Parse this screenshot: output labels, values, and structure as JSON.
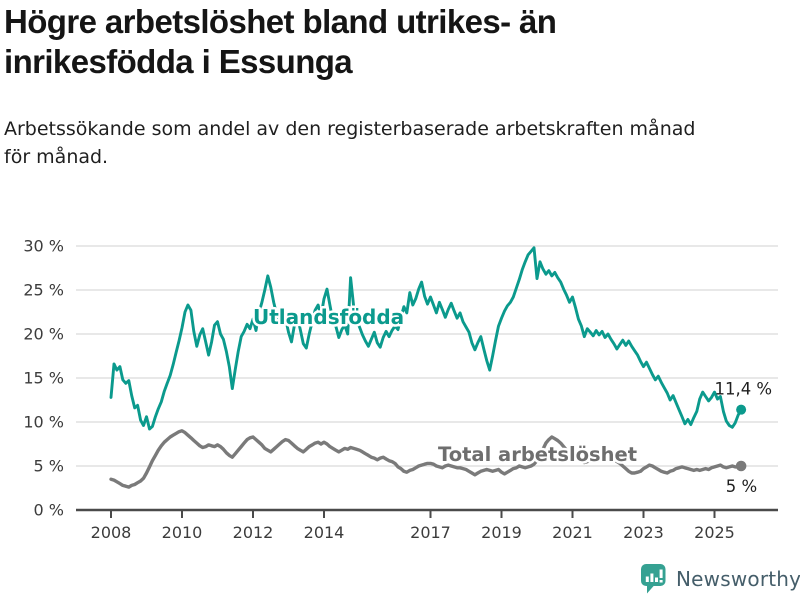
{
  "header": {
    "title": "Högre arbetslöshet bland utrikes- än\ninrikesfödda i Essunga",
    "subtitle": "Arbetssökande som andel av den registerbaserade arbetskraften månad\nför månad."
  },
  "chart_data": {
    "type": "line",
    "frequency": "monthly",
    "x_start": "2008-01",
    "x_end": "2025-10",
    "unit": "%",
    "ylim": [
      0,
      30
    ],
    "grid": "horizontal",
    "y_ticks": [
      0,
      5,
      10,
      15,
      20,
      25,
      30
    ],
    "y_tick_labels": [
      "0 %",
      "5 %",
      "10 %",
      "15 %",
      "20 %",
      "25 %",
      "30 %"
    ],
    "x_tick_years": [
      2008,
      2010,
      2012,
      2014,
      2017,
      2019,
      2021,
      2023,
      2025
    ],
    "x_tick_labels": [
      "2008",
      "2010",
      "2012",
      "2014",
      "2017",
      "2019",
      "2021",
      "2023",
      "2025"
    ],
    "colors": {
      "grid": "#d9d9d9",
      "axis": "#4a4a4a",
      "tick_text": "#3c3c3c",
      "annotation_text": "#1f1f1f"
    },
    "series": [
      {
        "name": "Utlandsfödda",
        "color": "#0b9a8d",
        "label_color": "#0b9a8d",
        "end_value": 11.4,
        "end_label": "11,4 %",
        "values": [
          12.8,
          16.6,
          15.9,
          16.3,
          14.8,
          14.4,
          14.7,
          13.0,
          11.6,
          11.9,
          10.2,
          9.6,
          10.6,
          9.2,
          9.5,
          10.6,
          11.5,
          12.3,
          13.5,
          14.4,
          15.3,
          16.5,
          17.9,
          19.2,
          20.7,
          22.5,
          23.3,
          22.7,
          20.3,
          18.6,
          19.9,
          20.6,
          19.1,
          17.6,
          19.1,
          21.0,
          21.4,
          20.0,
          19.4,
          18.0,
          16.3,
          13.8,
          16.0,
          18.0,
          19.7,
          20.3,
          21.1,
          20.6,
          21.7,
          20.4,
          22.4,
          23.6,
          25.0,
          26.6,
          25.3,
          23.6,
          22.2,
          21.2,
          22.5,
          21.8,
          20.2,
          19.1,
          21.0,
          21.9,
          20.5,
          18.9,
          18.4,
          20.0,
          21.4,
          22.7,
          23.3,
          22.0,
          24.0,
          25.1,
          23.3,
          21.5,
          20.9,
          19.6,
          20.5,
          21.0,
          20.0,
          26.4,
          23.2,
          21.5,
          20.8,
          19.9,
          19.2,
          18.6,
          19.4,
          20.2,
          19.0,
          18.5,
          19.6,
          20.3,
          19.7,
          20.4,
          20.9,
          20.5,
          21.9,
          23.1,
          22.4,
          24.7,
          23.3,
          24.0,
          25.1,
          25.9,
          24.3,
          23.4,
          24.2,
          23.3,
          22.4,
          23.6,
          22.8,
          21.9,
          22.8,
          23.5,
          22.6,
          21.8,
          22.4,
          21.4,
          20.8,
          20.2,
          19.0,
          18.2,
          19.0,
          19.7,
          18.3,
          17.0,
          15.9,
          17.5,
          19.3,
          20.9,
          21.8,
          22.6,
          23.2,
          23.6,
          24.2,
          25.2,
          26.2,
          27.3,
          28.2,
          29.0,
          29.4,
          29.8,
          26.3,
          28.2,
          27.4,
          26.8,
          27.2,
          26.6,
          27.0,
          26.4,
          25.9,
          25.1,
          24.4,
          23.6,
          24.2,
          23.0,
          21.7,
          20.9,
          19.7,
          20.6,
          20.2,
          19.8,
          20.4,
          19.9,
          20.3,
          19.6,
          20.0,
          19.4,
          18.9,
          18.3,
          18.8,
          19.3,
          18.7,
          19.2,
          18.6,
          18.1,
          17.6,
          16.9,
          16.3,
          16.8,
          16.1,
          15.4,
          14.8,
          15.2,
          14.5,
          13.9,
          13.3,
          12.5,
          13.0,
          12.2,
          11.4,
          10.6,
          9.8,
          10.3,
          9.7,
          10.5,
          11.2,
          12.6,
          13.4,
          12.9,
          12.4,
          12.8,
          13.4,
          12.6,
          12.9,
          11.2,
          10.1,
          9.6,
          9.4,
          9.9,
          10.8,
          11.4
        ]
      },
      {
        "name": "Total arbetslöshet",
        "color": "#7a7a7a",
        "label_color": "#6e6e6e",
        "end_value": 5,
        "end_label": "5 %",
        "values": [
          3.5,
          3.4,
          3.2,
          3.0,
          2.8,
          2.7,
          2.6,
          2.8,
          2.9,
          3.1,
          3.3,
          3.6,
          4.2,
          4.9,
          5.6,
          6.2,
          6.8,
          7.3,
          7.7,
          8.0,
          8.3,
          8.5,
          8.7,
          8.9,
          9.0,
          8.8,
          8.5,
          8.2,
          7.9,
          7.6,
          7.3,
          7.1,
          7.2,
          7.4,
          7.3,
          7.2,
          7.4,
          7.2,
          6.9,
          6.5,
          6.2,
          6.0,
          6.4,
          6.8,
          7.2,
          7.6,
          8.0,
          8.2,
          8.3,
          8.0,
          7.7,
          7.4,
          7.0,
          6.8,
          6.6,
          6.9,
          7.2,
          7.5,
          7.8,
          8.0,
          7.9,
          7.6,
          7.3,
          7.0,
          6.8,
          6.6,
          6.9,
          7.2,
          7.4,
          7.6,
          7.7,
          7.5,
          7.7,
          7.5,
          7.2,
          7.0,
          6.8,
          6.6,
          6.8,
          7.0,
          6.9,
          7.1,
          7.0,
          6.9,
          6.8,
          6.6,
          6.4,
          6.2,
          6.0,
          5.9,
          5.7,
          5.9,
          6.0,
          5.8,
          5.6,
          5.5,
          5.3,
          4.9,
          4.7,
          4.4,
          4.3,
          4.5,
          4.6,
          4.8,
          5.0,
          5.1,
          5.2,
          5.3,
          5.3,
          5.2,
          5.0,
          4.9,
          4.8,
          5.0,
          5.1,
          5.0,
          4.9,
          4.8,
          4.8,
          4.7,
          4.6,
          4.4,
          4.2,
          4.0,
          4.2,
          4.4,
          4.5,
          4.6,
          4.5,
          4.4,
          4.5,
          4.6,
          4.3,
          4.1,
          4.3,
          4.5,
          4.7,
          4.8,
          5.0,
          4.9,
          4.8,
          4.9,
          5.0,
          5.2,
          5.6,
          6.2,
          6.9,
          7.6,
          8.0,
          8.3,
          8.1,
          7.9,
          7.6,
          7.2,
          6.8,
          6.4,
          6.1,
          5.9,
          5.7,
          5.6,
          5.4,
          5.5,
          5.6,
          5.5,
          5.6,
          5.7,
          5.8,
          5.7,
          5.8,
          5.9,
          5.7,
          5.5,
          5.3,
          5.0,
          4.7,
          4.4,
          4.2,
          4.2,
          4.3,
          4.4,
          4.7,
          4.9,
          5.1,
          5.0,
          4.8,
          4.6,
          4.4,
          4.3,
          4.2,
          4.4,
          4.5,
          4.7,
          4.8,
          4.9,
          4.8,
          4.7,
          4.6,
          4.5,
          4.6,
          4.5,
          4.6,
          4.7,
          4.6,
          4.8,
          4.9,
          5.0,
          5.1,
          4.9,
          4.8,
          4.9,
          5.0,
          4.9,
          4.9,
          5.0
        ]
      }
    ]
  },
  "footer": {
    "brand": "Newsworthy"
  }
}
